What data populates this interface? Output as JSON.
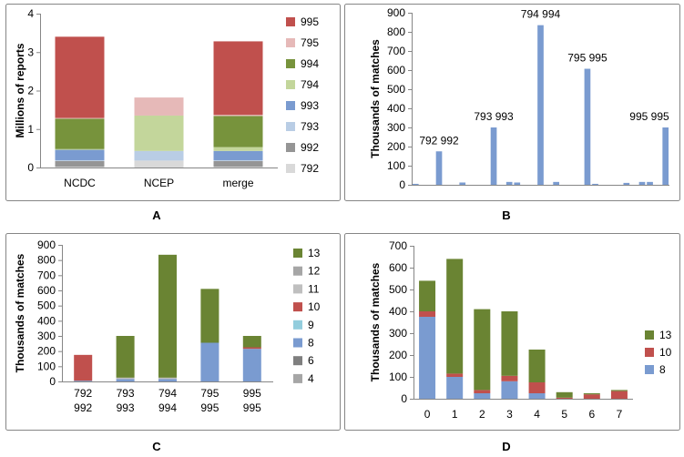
{
  "colors": {
    "c792": "#d9d9d9",
    "c992": "#959595",
    "c793": "#b9cde5",
    "c993": "#7a9bd0",
    "c794": "#c3d69b",
    "c994": "#77933c",
    "c795": "#e6b9b8",
    "c995": "#c0504d",
    "c4": "#a6a6a6",
    "c6": "#7f7f7f",
    "c8": "#7a9bd0",
    "c9": "#93cddd",
    "c10": "#c0504d",
    "c11": "#bfbfbf",
    "c12": "#a6a6a6",
    "c13": "#6a8433",
    "axis": "#868686",
    "panel_border": "#868686"
  },
  "chart_data": [
    {
      "panel": "A",
      "type": "bar",
      "stacked": true,
      "ylabel": "Millions of reports",
      "ylim": [
        0,
        4
      ],
      "yticks": [
        "0",
        "1",
        "2",
        "3",
        "4"
      ],
      "categories": [
        "NCDC",
        "NCEP",
        "merge"
      ],
      "series": [
        {
          "name": "792",
          "color": "#d9d9d9",
          "values": [
            0.02,
            0.18,
            0.02
          ]
        },
        {
          "name": "992",
          "color": "#959595",
          "values": [
            0.15,
            0.0,
            0.15
          ]
        },
        {
          "name": "793",
          "color": "#b9cde5",
          "values": [
            0.02,
            0.25,
            0.02
          ]
        },
        {
          "name": "993",
          "color": "#7a9bd0",
          "values": [
            0.27,
            0.0,
            0.24
          ]
        },
        {
          "name": "794",
          "color": "#c3d69b",
          "values": [
            0.02,
            0.92,
            0.1
          ]
        },
        {
          "name": "994",
          "color": "#77933c",
          "values": [
            0.79,
            0.0,
            0.81
          ]
        },
        {
          "name": "795",
          "color": "#e6b9b8",
          "values": [
            0.02,
            0.47,
            0.03
          ]
        },
        {
          "name": "995",
          "color": "#c0504d",
          "values": [
            2.11,
            0.0,
            1.91
          ]
        }
      ],
      "legend_order": [
        "995",
        "795",
        "994",
        "794",
        "993",
        "793",
        "992",
        "792"
      ]
    },
    {
      "panel": "B",
      "type": "bar",
      "ylabel": "Thousands of matches",
      "ylim": [
        0,
        900
      ],
      "yticks": [
        "0",
        "100",
        "200",
        "300",
        "400",
        "500",
        "600",
        "700",
        "800",
        "900"
      ],
      "series": [
        {
          "name": "matches",
          "color": "#7a9bd0",
          "values": [
            5,
            0,
            0,
            175,
            0,
            0,
            12,
            0,
            0,
            0,
            300,
            0,
            15,
            12,
            0,
            0,
            835,
            0,
            15,
            0,
            0,
            0,
            607,
            5,
            0,
            0,
            0,
            10,
            0,
            15,
            15,
            0,
            300
          ]
        }
      ],
      "annotations": [
        {
          "text": "792 992",
          "index": 3
        },
        {
          "text": "793 993",
          "index": 10
        },
        {
          "text": "794 994",
          "index": 16
        },
        {
          "text": "795 995",
          "index": 22
        },
        {
          "text": "995 995",
          "index": 32
        }
      ]
    },
    {
      "panel": "C",
      "type": "bar",
      "stacked": true,
      "ylabel": "Thousands of matches",
      "ylim": [
        0,
        900
      ],
      "yticks": [
        "0",
        "100",
        "200",
        "300",
        "400",
        "500",
        "600",
        "700",
        "800",
        "900"
      ],
      "categories": [
        [
          "792",
          "992"
        ],
        [
          "793",
          "993"
        ],
        [
          "794",
          "994"
        ],
        [
          "795",
          "995"
        ],
        [
          "995",
          "995"
        ]
      ],
      "series": [
        {
          "name": "4",
          "color": "#a6a6a6",
          "values": [
            0,
            0,
            0,
            0,
            0
          ]
        },
        {
          "name": "6",
          "color": "#7f7f7f",
          "values": [
            0,
            0,
            0,
            0,
            0
          ]
        },
        {
          "name": "8",
          "color": "#7a9bd0",
          "values": [
            5,
            15,
            15,
            255,
            215
          ]
        },
        {
          "name": "9",
          "color": "#93cddd",
          "values": [
            0,
            0,
            0,
            0,
            0
          ]
        },
        {
          "name": "10",
          "color": "#c0504d",
          "values": [
            170,
            0,
            0,
            0,
            10
          ]
        },
        {
          "name": "11",
          "color": "#bfbfbf",
          "values": [
            0,
            10,
            10,
            0,
            0
          ]
        },
        {
          "name": "12",
          "color": "#a6a6a6",
          "values": [
            0,
            0,
            0,
            0,
            0
          ]
        },
        {
          "name": "13",
          "color": "#6a8433",
          "values": [
            0,
            275,
            810,
            355,
            75
          ]
        }
      ],
      "legend_order": [
        "13",
        "12",
        "11",
        "10",
        "9",
        "8",
        "6",
        "4"
      ]
    },
    {
      "panel": "D",
      "type": "bar",
      "stacked": true,
      "ylabel": "Thousands of matches",
      "ylim": [
        0,
        700
      ],
      "yticks": [
        "0",
        "100",
        "200",
        "300",
        "400",
        "500",
        "600",
        "700"
      ],
      "categories": [
        "0",
        "1",
        "2",
        "3",
        "4",
        "5",
        "6",
        "7"
      ],
      "series": [
        {
          "name": "8",
          "color": "#7a9bd0",
          "values": [
            375,
            100,
            25,
            80,
            25,
            0,
            0,
            0
          ]
        },
        {
          "name": "10",
          "color": "#c0504d",
          "values": [
            25,
            15,
            15,
            25,
            50,
            5,
            20,
            35
          ]
        },
        {
          "name": "13",
          "color": "#6a8433",
          "values": [
            140,
            525,
            370,
            295,
            150,
            25,
            5,
            5
          ]
        }
      ],
      "legend_order": [
        "13",
        "10",
        "8"
      ]
    }
  ],
  "panel_labels": [
    "A",
    "B",
    "C",
    "D"
  ]
}
